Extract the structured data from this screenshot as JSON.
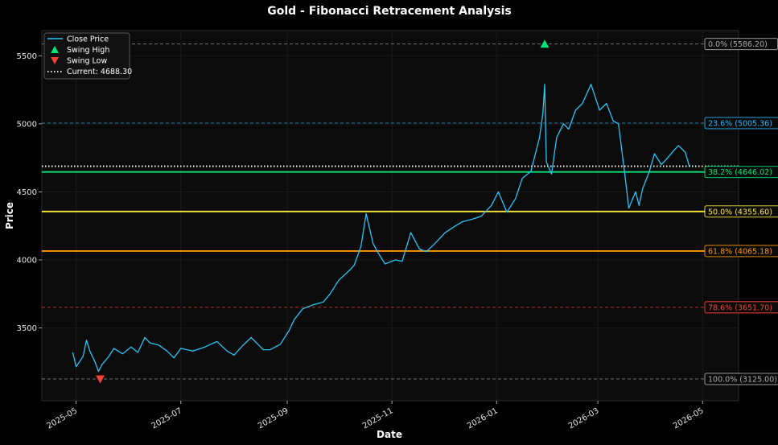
{
  "chart_data": {
    "type": "line",
    "title": "Gold - Fibonacci Retracement Analysis",
    "xlabel": "Date",
    "ylabel": "Price",
    "x_ticks": [
      "2025-05",
      "2025-07",
      "2025-09",
      "2025-11",
      "2026-01",
      "2026-03",
      "2026-05"
    ],
    "y_ticks": [
      3500,
      4000,
      4500,
      5000,
      5500
    ],
    "xlim": [
      "2025-04-11",
      "2026-05-22"
    ],
    "ylim": [
      2965,
      5685
    ],
    "grid": true,
    "legend_position": "top-left",
    "legend": {
      "close": "Close Price",
      "swing_high": "Swing High",
      "swing_low": "Swing Low",
      "current": "Current: 4688.30"
    },
    "current_price": 4688.3,
    "swing_high": {
      "date": "2026-01-29",
      "value": 5586.2
    },
    "swing_low": {
      "date": "2025-05-15",
      "value": 3125.0
    },
    "fib_levels": [
      {
        "value": 5586.2,
        "label": "0.0% (5586.20)",
        "color": "#aaaaaa",
        "style": "dashed"
      },
      {
        "value": 5005.36,
        "label": "23.6% (5005.36)",
        "color": "#29b6f6",
        "style": "dashed"
      },
      {
        "value": 4646.02,
        "label": "38.2% (4646.02)",
        "color": "#00e676",
        "style": "solid"
      },
      {
        "value": 4355.6,
        "label": "50.0% (4355.60)",
        "color": "#ffeb3b",
        "style": "solid"
      },
      {
        "value": 4065.18,
        "label": "61.8% (4065.18)",
        "color": "#ff9800",
        "style": "solid"
      },
      {
        "value": 3651.7,
        "label": "78.6% (3651.70)",
        "color": "#f44336",
        "style": "dashed"
      },
      {
        "value": 3125.0,
        "label": "100.0% (3125.00)",
        "color": "#aaaaaa",
        "style": "dashed"
      }
    ],
    "series": [
      {
        "name": "Close Price",
        "color": "#29c5f6",
        "x": [
          "2025-04-29",
          "2025-05-01",
          "2025-05-05",
          "2025-05-07",
          "2025-05-09",
          "2025-05-12",
          "2025-05-14",
          "2025-05-16",
          "2025-05-20",
          "2025-05-23",
          "2025-05-28",
          "2025-06-02",
          "2025-06-06",
          "2025-06-10",
          "2025-06-13",
          "2025-06-18",
          "2025-06-23",
          "2025-06-27",
          "2025-07-01",
          "2025-07-08",
          "2025-07-15",
          "2025-07-22",
          "2025-07-28",
          "2025-08-01",
          "2025-08-06",
          "2025-08-11",
          "2025-08-18",
          "2025-08-22",
          "2025-08-28",
          "2025-09-02",
          "2025-09-05",
          "2025-09-10",
          "2025-09-16",
          "2025-09-22",
          "2025-09-26",
          "2025-10-01",
          "2025-10-07",
          "2025-10-10",
          "2025-10-14",
          "2025-10-17",
          "2025-10-21",
          "2025-10-24",
          "2025-10-28",
          "2025-11-03",
          "2025-11-07",
          "2025-11-12",
          "2025-11-17",
          "2025-11-21",
          "2025-11-26",
          "2025-12-02",
          "2025-12-08",
          "2025-12-12",
          "2025-12-18",
          "2025-12-23",
          "2025-12-29",
          "2026-01-02",
          "2026-01-07",
          "2026-01-12",
          "2026-01-16",
          "2026-01-21",
          "2026-01-26",
          "2026-01-28",
          "2026-01-29",
          "2026-01-30",
          "2026-02-02",
          "2026-02-05",
          "2026-02-09",
          "2026-02-12",
          "2026-02-16",
          "2026-02-20",
          "2026-02-25",
          "2026-03-02",
          "2026-03-06",
          "2026-03-10",
          "2026-03-13",
          "2026-03-17",
          "2026-03-19",
          "2026-03-23",
          "2026-03-25",
          "2026-03-27",
          "2026-03-31",
          "2026-04-03",
          "2026-04-07",
          "2026-04-10",
          "2026-04-14",
          "2026-04-17",
          "2026-04-21",
          "2026-04-23",
          "2026-04-24"
        ],
        "values": [
          3320,
          3215,
          3290,
          3410,
          3330,
          3250,
          3180,
          3230,
          3290,
          3350,
          3310,
          3360,
          3320,
          3430,
          3390,
          3375,
          3330,
          3280,
          3350,
          3330,
          3360,
          3400,
          3330,
          3300,
          3370,
          3430,
          3340,
          3340,
          3380,
          3480,
          3560,
          3640,
          3670,
          3690,
          3750,
          3850,
          3920,
          3960,
          4100,
          4340,
          4120,
          4050,
          3970,
          4000,
          3990,
          4200,
          4080,
          4060,
          4120,
          4200,
          4250,
          4280,
          4300,
          4320,
          4400,
          4500,
          4350,
          4450,
          4600,
          4650,
          4900,
          5080,
          5290,
          4720,
          4630,
          4900,
          5000,
          4960,
          5100,
          5150,
          5290,
          5100,
          5150,
          5020,
          5000,
          4600,
          4380,
          4500,
          4400,
          4520,
          4650,
          4780,
          4700,
          4740,
          4800,
          4840,
          4790,
          4700,
          4688
        ]
      }
    ]
  }
}
